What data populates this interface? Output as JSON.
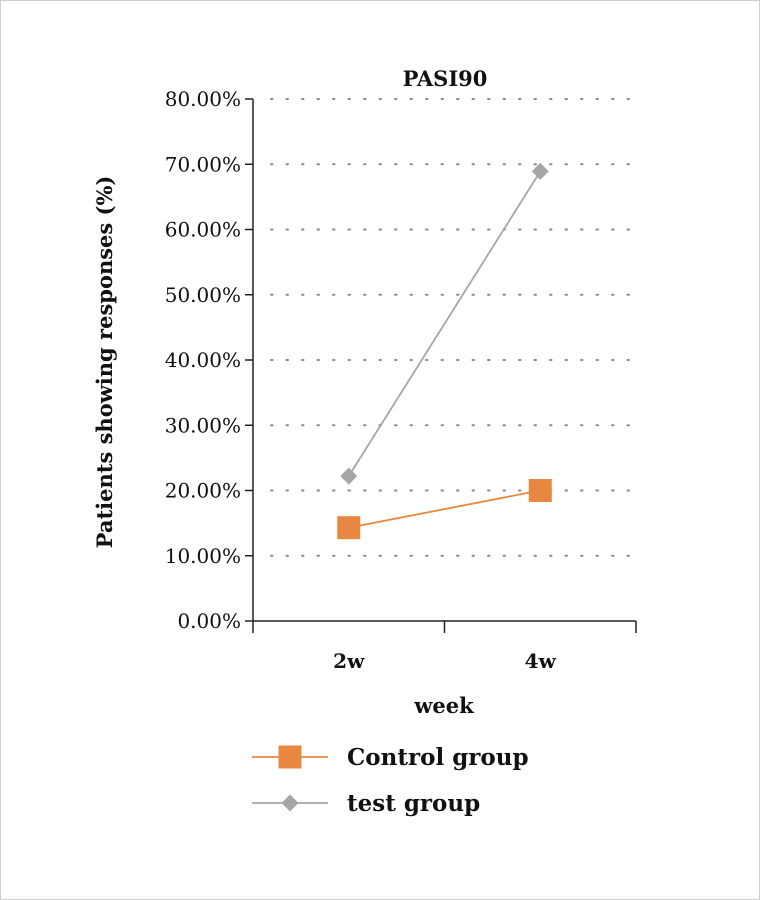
{
  "chart_data": {
    "type": "line",
    "title": "PASI90",
    "xlabel": "week",
    "ylabel": "Patients showing responses (%)",
    "categories": [
      "2w",
      "4w"
    ],
    "yticks": [
      "0.00%",
      "10.00%",
      "20.00%",
      "30.00%",
      "40.00%",
      "50.00%",
      "60.00%",
      "70.00%",
      "80.00%"
    ],
    "ylim": [
      0,
      80
    ],
    "grid": "dotted horizontal",
    "legend_position": "bottom",
    "series": [
      {
        "name": "Control group",
        "values": [
          14.3,
          20.0
        ],
        "color": "#e8873f",
        "marker": "square"
      },
      {
        "name": "test group",
        "values": [
          22.2,
          68.9
        ],
        "color": "#a6a6a6",
        "marker": "diamond"
      }
    ]
  }
}
